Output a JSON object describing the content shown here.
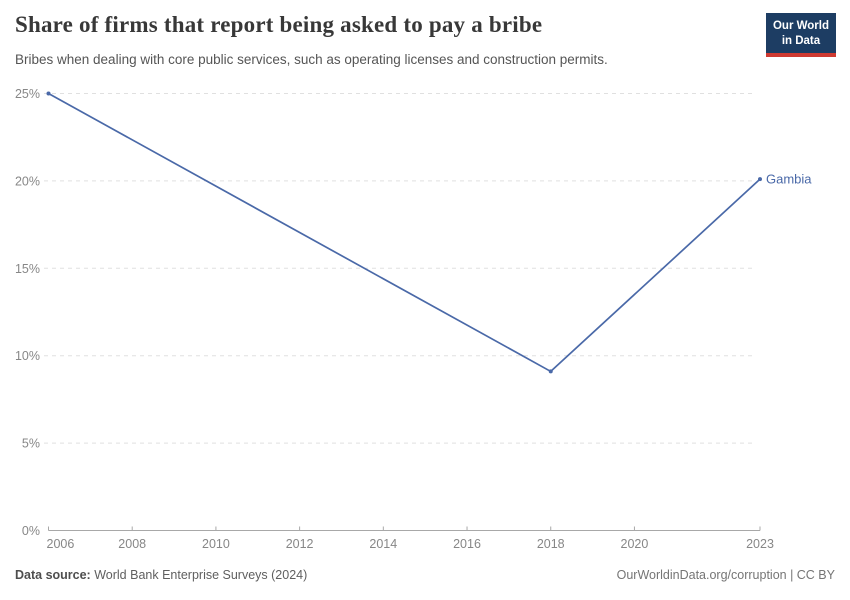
{
  "header": {
    "title": "Share of firms that report being asked to pay a bribe",
    "subtitle": "Bribes when dealing with core public services, such as operating licenses and construction permits."
  },
  "logo": {
    "line1": "Our World",
    "line2": "in Data",
    "bg_color": "#1d3d63",
    "accent_color": "#cf3a31"
  },
  "chart_data": {
    "type": "line",
    "title": "Share of firms that report being asked to pay a bribe",
    "series": [
      {
        "name": "Gambia",
        "color": "#4a69a8",
        "points": [
          {
            "x": 2006,
            "y": 25.0
          },
          {
            "x": 2018,
            "y": 9.1
          },
          {
            "x": 2023,
            "y": 20.1
          }
        ]
      }
    ],
    "xlim": [
      2006,
      2023
    ],
    "ylim": [
      0,
      25
    ],
    "xticks": [
      2006,
      2008,
      2010,
      2012,
      2014,
      2016,
      2018,
      2020,
      2023
    ],
    "yticks": [
      0,
      5,
      10,
      15,
      20,
      25
    ],
    "ytick_suffix": "%",
    "grid": "horizontal-dashed",
    "grid_color": "#e0e0e0",
    "axis_color": "#a8a8a8",
    "tick_label_color": "#878787",
    "legend_position": "end-of-line-label"
  },
  "footer": {
    "source_label": "Data source:",
    "source_text": "World Bank Enterprise Surveys (2024)",
    "attribution": "OurWorldinData.org/corruption | CC BY"
  }
}
